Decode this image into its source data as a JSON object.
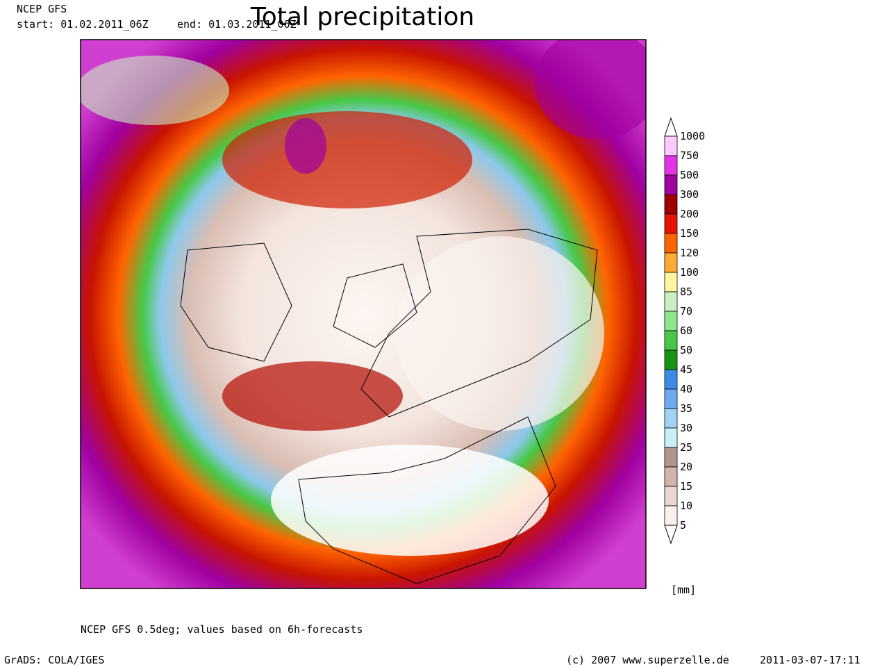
{
  "header": {
    "model": "NCEP GFS",
    "start": "start: 01.02.2011_06Z",
    "end": "end: 01.03.2011_06Z",
    "title": "Total precipitation"
  },
  "legend": {
    "levels": [
      1000,
      750,
      500,
      300,
      200,
      150,
      120,
      100,
      85,
      70,
      60,
      50,
      45,
      40,
      35,
      30,
      25,
      20,
      15,
      10,
      5
    ],
    "colors": [
      "#ffc8ff",
      "#e632e6",
      "#a000a0",
      "#a00000",
      "#e61400",
      "#ff6400",
      "#ffaa32",
      "#fff5a0",
      "#c8f0c0",
      "#8ce68c",
      "#46c846",
      "#149614",
      "#3c8ce6",
      "#6eaaf0",
      "#a0d2f5",
      "#c8f0f8",
      "#b4968c",
      "#d2b4aa",
      "#ebd7d2",
      "#fbf0ec"
    ],
    "unit": "[mm]"
  },
  "footer": {
    "note": "NCEP GFS 0.5deg; values based on 6h-forecasts",
    "software": "GrADS: COLA/IGES",
    "copyright": "(c) 2007 www.superzelle.de",
    "timestamp": "2011-03-07-17:11"
  }
}
